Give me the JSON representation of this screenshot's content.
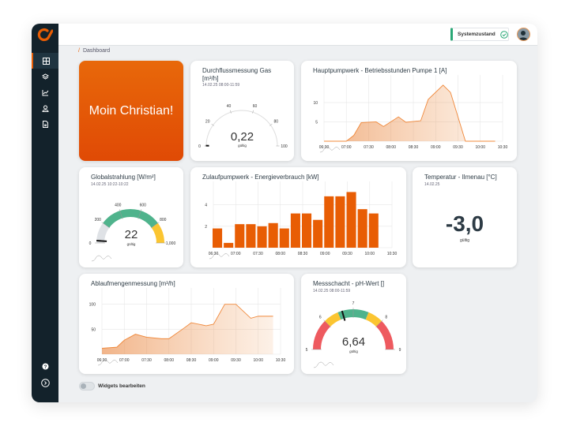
{
  "breadcrumb": {
    "sep": "/",
    "current": "Dashboard"
  },
  "header": {
    "status_label": "Systemzustand",
    "status_color": "#2aa876"
  },
  "sidebar": {
    "items": [
      "dashboard",
      "layers",
      "charts",
      "users",
      "reports"
    ],
    "bottom": [
      "help",
      "expand"
    ]
  },
  "greeting": "Moin Christian!",
  "gas": {
    "title": "Durchflussmessung Gas",
    "unit": "[m³/h]",
    "date": "14.02.25 08:00-11:59",
    "value": "0,22",
    "numeric": 0.22,
    "min": 0,
    "max": 100,
    "ticks": [
      "0",
      "20",
      "40",
      "60",
      "80",
      "100"
    ],
    "status": "gültig"
  },
  "solar": {
    "title": "Globalstrahlung [W/m²]",
    "date": "14.02.25 10:22-10:22",
    "value": "22",
    "numeric": 22,
    "min": 0,
    "max": 1000,
    "ticks": [
      "0",
      "200",
      "400",
      "600",
      "800",
      "1,000"
    ],
    "status": "gültig"
  },
  "temp": {
    "title": "Temperatur - Ilmenau [°C]",
    "date": "14.02.25",
    "value": "-3,0",
    "status": "gültig"
  },
  "ph": {
    "title": "Messschacht - pH-Wert []",
    "date": "14.02.25 08:00-11:59",
    "value": "6,64",
    "numeric": 6.64,
    "min": 5,
    "max": 9,
    "ticks": [
      "5",
      "6",
      "7",
      "8",
      "9"
    ],
    "status": "gültig"
  },
  "footer": {
    "edit_label": "Widgets bearbeiten"
  },
  "colors": {
    "accent": "#e85d04",
    "green": "#4fb38c",
    "yellow": "#fbc531",
    "red": "#ee5a5f"
  },
  "chart_data": [
    {
      "id": "pump",
      "type": "area",
      "title": "Hauptpumpwerk - Betriebsstunden Pumpe 1 [A]",
      "xlabels": [
        "06:30",
        "07:00",
        "07:30",
        "08:00",
        "08:30",
        "09:00",
        "09:30",
        "10:00",
        "10:30"
      ],
      "x": [
        "06:30",
        "06:40",
        "06:50",
        "07:00",
        "07:10",
        "07:20",
        "07:40",
        "07:50",
        "08:10",
        "08:20",
        "08:40",
        "08:50",
        "09:10",
        "09:20",
        "09:40",
        "10:20"
      ],
      "y": [
        0,
        0,
        0,
        0,
        1.5,
        4.8,
        5,
        3.8,
        6.3,
        4.9,
        5.3,
        10.8,
        14.5,
        12.6,
        0,
        0
      ],
      "yticks": [
        5,
        10
      ],
      "ylim": [
        0,
        15.5
      ]
    },
    {
      "id": "zulauf",
      "type": "bar",
      "title": "Zulaufpumpwerk - Energieverbrauch [kW]",
      "xlabels": [
        "06:30",
        "07:00",
        "07:30",
        "08:00",
        "08:30",
        "09:00",
        "09:30",
        "10:00",
        "10:30"
      ],
      "x": [
        "06:30",
        "06:45",
        "07:00",
        "07:15",
        "07:30",
        "07:45",
        "08:00",
        "08:15",
        "08:30",
        "08:45",
        "09:00",
        "09:15",
        "09:30",
        "09:45",
        "10:00"
      ],
      "y": [
        1.8,
        0.45,
        2.2,
        2.2,
        2.0,
        2.3,
        1.8,
        3.2,
        3.2,
        2.6,
        4.8,
        4.8,
        5.2,
        3.6,
        3.2
      ],
      "yticks": [
        2,
        4
      ],
      "ylim": [
        0,
        5.6
      ]
    },
    {
      "id": "ablauf",
      "type": "area",
      "title": "Ablaufmengenmessung [m³/h]",
      "xlabels": [
        "06:30",
        "07:00",
        "07:30",
        "08:00",
        "08:30",
        "09:00",
        "09:30",
        "10:00",
        "10:30"
      ],
      "x": [
        "06:30",
        "06:50",
        "07:00",
        "07:15",
        "07:30",
        "07:50",
        "08:00",
        "08:20",
        "08:30",
        "08:50",
        "09:00",
        "09:15",
        "09:30",
        "09:50",
        "10:00",
        "10:20"
      ],
      "y": [
        12,
        14,
        28,
        40,
        34,
        31,
        31,
        52,
        63,
        57,
        60,
        100,
        100,
        72,
        76,
        76
      ],
      "yticks": [
        50,
        100
      ],
      "ylim": [
        0,
        120
      ]
    }
  ]
}
